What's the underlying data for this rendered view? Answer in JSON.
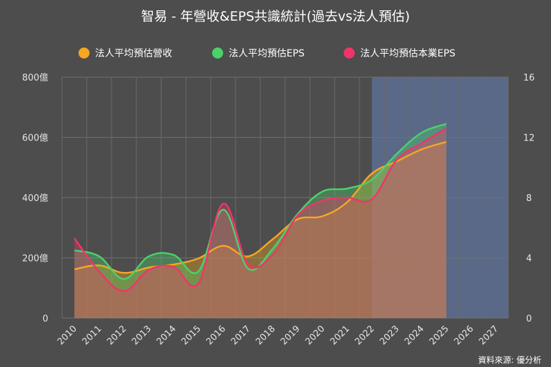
{
  "chart_data": {
    "type": "area",
    "title": "智易 - 年營收&EPS共識統計(過去vs法人預估)",
    "source_note": "資料來源: 優分析",
    "categories": [
      "2010",
      "2011",
      "2012",
      "2013",
      "2014",
      "2015",
      "2016",
      "2017",
      "2018",
      "2019",
      "2020",
      "2021",
      "2022",
      "2023",
      "2024",
      "2025",
      "2026",
      "2027"
    ],
    "forecast_shade": {
      "from": "2022",
      "to": "2027"
    },
    "y_left": {
      "min": 0,
      "max": 800,
      "ticks": [
        "0",
        "200億",
        "400億",
        "600億",
        "800億"
      ],
      "tick_values": [
        0,
        200,
        400,
        600,
        800
      ]
    },
    "y_right": {
      "min": 0,
      "max": 16,
      "ticks": [
        "0",
        "4",
        "8",
        "12",
        "16"
      ],
      "tick_values": [
        0,
        4,
        8,
        12,
        16
      ]
    },
    "grid": true,
    "legend_position": "top",
    "series": [
      {
        "name": "法人平均預估營收",
        "axis": "left",
        "color": "#f5a623",
        "values": [
          162,
          175,
          150,
          168,
          178,
          198,
          240,
          205,
          262,
          328,
          338,
          385,
          480,
          520,
          560,
          585,
          null,
          null
        ]
      },
      {
        "name": "法人平均預估EPS",
        "axis": "right",
        "color": "#4cd06a",
        "values": [
          4.5,
          4.1,
          2.6,
          4.1,
          4.2,
          3.1,
          7.2,
          3.3,
          4.6,
          6.9,
          8.4,
          8.6,
          9.2,
          10.9,
          12.3,
          12.9,
          null,
          null
        ]
      },
      {
        "name": "法人平均預估本業EPS",
        "axis": "right",
        "color": "#f0346a",
        "values": [
          5.3,
          3.1,
          1.8,
          3.2,
          3.4,
          2.3,
          7.6,
          3.6,
          4.2,
          6.8,
          7.8,
          8.0,
          7.9,
          10.5,
          11.6,
          12.6,
          null,
          null
        ]
      }
    ]
  }
}
